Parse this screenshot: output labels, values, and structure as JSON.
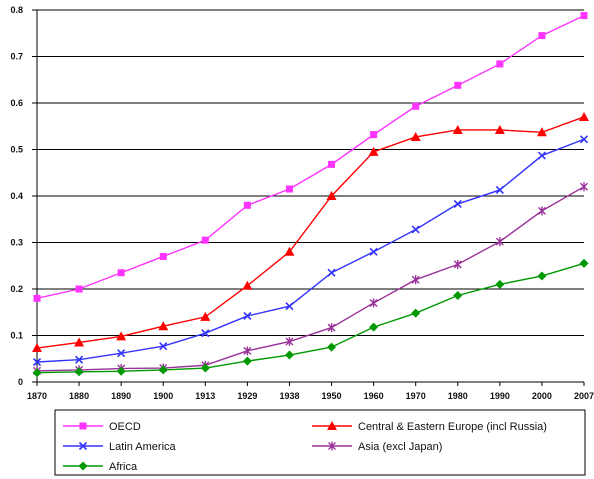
{
  "chart_data": {
    "type": "line",
    "x": [
      "1870",
      "1880",
      "1890",
      "1900",
      "1913",
      "1929",
      "1938",
      "1950",
      "1960",
      "1970",
      "1980",
      "1990",
      "2000",
      "2007"
    ],
    "ylim": [
      0,
      0.8
    ],
    "yticks": [
      "0",
      "0.1",
      "0.2",
      "0.3",
      "0.4",
      "0.5",
      "0.6",
      "0.7",
      "0.8"
    ],
    "grid": true,
    "legend_position": "bottom",
    "series": [
      {
        "name": "OECD",
        "color": "#ff33ff",
        "marker": "square",
        "values": [
          0.18,
          0.2,
          0.235,
          0.27,
          0.305,
          0.38,
          0.415,
          0.468,
          0.532,
          0.593,
          0.638,
          0.684,
          0.745,
          0.788
        ]
      },
      {
        "name": "Central & Eastern Europe (incl Russia)",
        "color": "#ff0000",
        "marker": "triangle",
        "values": [
          0.073,
          0.085,
          0.098,
          0.12,
          0.14,
          0.207,
          0.28,
          0.4,
          0.495,
          0.527,
          0.542,
          0.542,
          0.537,
          0.57
        ]
      },
      {
        "name": "Latin America",
        "color": "#3333ff",
        "marker": "x",
        "values": [
          0.043,
          0.048,
          0.062,
          0.077,
          0.105,
          0.142,
          0.163,
          0.235,
          0.28,
          0.328,
          0.383,
          0.413,
          0.487,
          0.522
        ]
      },
      {
        "name": "Asia (excl Japan)",
        "color": "#993399",
        "marker": "star",
        "values": [
          0.024,
          0.026,
          0.029,
          0.03,
          0.036,
          0.067,
          0.087,
          0.117,
          0.17,
          0.22,
          0.253,
          0.302,
          0.368,
          0.42
        ]
      },
      {
        "name": "Africa",
        "color": "#009900",
        "marker": "diamond",
        "values": [
          0.02,
          0.022,
          0.023,
          0.026,
          0.03,
          0.045,
          0.058,
          0.075,
          0.118,
          0.148,
          0.186,
          0.21,
          0.228,
          0.255
        ]
      }
    ]
  }
}
